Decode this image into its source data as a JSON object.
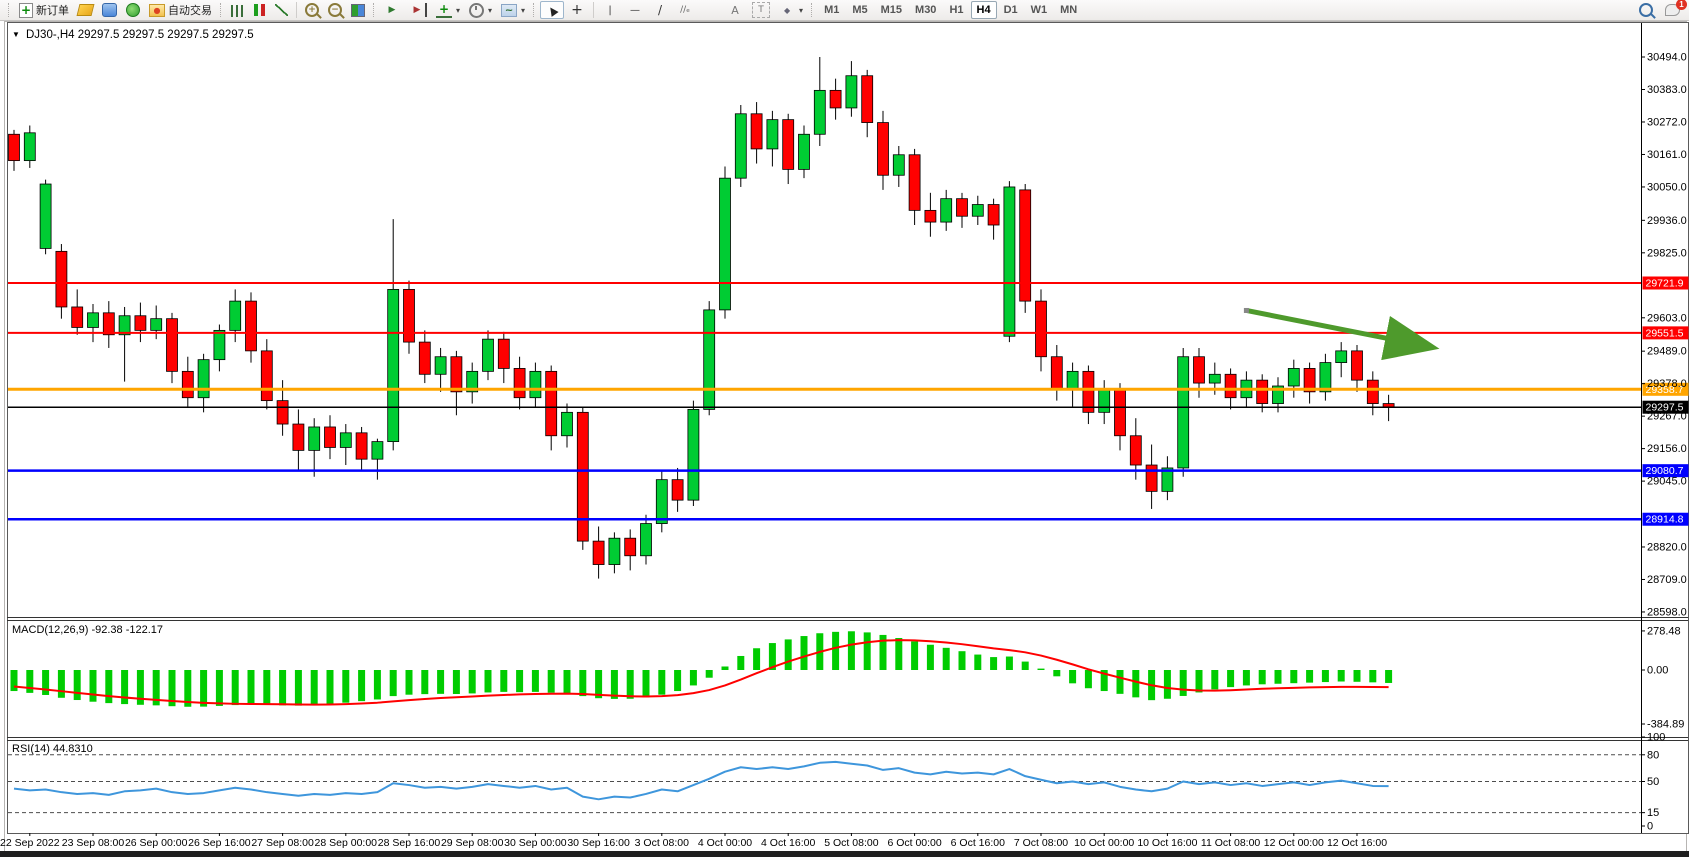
{
  "toolbar": {
    "items": [
      {
        "kind": "grip",
        "name": "toolbar-grip-1"
      },
      {
        "kind": "btn",
        "name": "new-order-button",
        "icon": "neworder",
        "iconName": "new-order-icon",
        "label": "新订单"
      },
      {
        "kind": "btn",
        "name": "highlight-button",
        "icon": "highlight",
        "iconName": "highlighter-icon"
      },
      {
        "kind": "btn",
        "name": "terminal-button",
        "icon": "terminal",
        "iconName": "terminal-window-icon"
      },
      {
        "kind": "btn",
        "name": "signals-button",
        "icon": "signal",
        "iconName": "broadcast-icon"
      },
      {
        "kind": "btn",
        "name": "auto-trading-button",
        "icon": "autotrade",
        "iconName": "auto-trading-icon",
        "label": "自动交易"
      },
      {
        "kind": "grip",
        "name": "toolbar-grip-2"
      },
      {
        "kind": "btn",
        "name": "bar-chart-button",
        "icon": "bars",
        "iconName": "bar-chart-icon"
      },
      {
        "kind": "btn",
        "name": "candlestick-chart-button",
        "icon": "candles",
        "iconName": "candlestick-icon"
      },
      {
        "kind": "btn",
        "name": "line-chart-button",
        "icon": "linechart",
        "iconName": "line-chart-icon"
      },
      {
        "kind": "sep",
        "name": "toolbar-sep-1"
      },
      {
        "kind": "btn",
        "name": "zoom-in-button",
        "icon": "zoomin",
        "iconName": "zoom-in-icon"
      },
      {
        "kind": "btn",
        "name": "zoom-out-button",
        "icon": "zoomout",
        "iconName": "zoom-out-icon"
      },
      {
        "kind": "btn",
        "name": "tile-windows-button",
        "icon": "tile",
        "iconName": "tile-windows-icon"
      },
      {
        "kind": "grip",
        "name": "toolbar-grip-3"
      },
      {
        "kind": "btn",
        "name": "auto-scroll-button",
        "icon": "autoscroll",
        "iconName": "auto-scroll-icon"
      },
      {
        "kind": "btn",
        "name": "chart-shift-button",
        "icon": "shift",
        "iconName": "chart-shift-icon"
      },
      {
        "kind": "btn",
        "name": "indicators-button",
        "icon": "indicators",
        "iconName": "indicators-icon",
        "caret": true
      },
      {
        "kind": "btn",
        "name": "periods-button",
        "icon": "clock",
        "iconName": "clock-icon",
        "caret": true
      },
      {
        "kind": "btn",
        "name": "templates-button",
        "icon": "template",
        "iconName": "template-icon",
        "caret": true
      },
      {
        "kind": "grip",
        "name": "toolbar-grip-4"
      },
      {
        "kind": "btn",
        "name": "cursor-button",
        "icon": "cursor",
        "iconName": "cursor-icon",
        "active": true
      },
      {
        "kind": "btn",
        "name": "crosshair-button",
        "icon": "crosshair",
        "iconName": "crosshair-icon"
      },
      {
        "kind": "sep",
        "name": "toolbar-sep-2"
      },
      {
        "kind": "btn",
        "name": "vertical-line-button",
        "icon": "vline",
        "iconName": "vertical-line-icon"
      },
      {
        "kind": "btn",
        "name": "horizontal-line-button",
        "icon": "hline",
        "iconName": "horizontal-line-icon"
      },
      {
        "kind": "btn",
        "name": "trendline-button",
        "icon": "trendline",
        "iconName": "trendline-icon"
      },
      {
        "kind": "btn",
        "name": "equidistant-channel-button",
        "icon": "channel",
        "iconName": "equidistant-channel-icon"
      },
      {
        "kind": "btn",
        "name": "fibonacci-button",
        "icon": "fibo",
        "iconName": "fibonacci-icon"
      },
      {
        "kind": "btn",
        "name": "text-button",
        "icon": "text",
        "iconName": "text-icon"
      },
      {
        "kind": "btn",
        "name": "text-label-button",
        "icon": "label",
        "iconName": "text-label-icon"
      },
      {
        "kind": "btn",
        "name": "arrows-button",
        "icon": "arrows",
        "iconName": "arrows-icon",
        "caret": true
      },
      {
        "kind": "grip",
        "name": "toolbar-grip-5"
      },
      {
        "kind": "tf",
        "name": "timeframe-m1",
        "label": "M1"
      },
      {
        "kind": "tf",
        "name": "timeframe-m5",
        "label": "M5"
      },
      {
        "kind": "tf",
        "name": "timeframe-m15",
        "label": "M15"
      },
      {
        "kind": "tf",
        "name": "timeframe-m30",
        "label": "M30"
      },
      {
        "kind": "tf",
        "name": "timeframe-h1",
        "label": "H1"
      },
      {
        "kind": "tf",
        "name": "timeframe-h4",
        "label": "H4",
        "active": true
      },
      {
        "kind": "tf",
        "name": "timeframe-d1",
        "label": "D1"
      },
      {
        "kind": "tf",
        "name": "timeframe-w1",
        "label": "W1"
      },
      {
        "kind": "tf",
        "name": "timeframe-mn",
        "label": "MN"
      }
    ],
    "right_items": [
      {
        "kind": "btn",
        "name": "search-button",
        "icon": "search",
        "iconName": "search-icon"
      },
      {
        "kind": "btn",
        "name": "chat-button",
        "icon": "chat",
        "iconName": "chat-bubble-icon",
        "badge": "1"
      }
    ]
  },
  "window": {
    "collapse_glyph": "▼",
    "title": "DJ30-,H4",
    "quotes": "29297.5 29297.5 29297.5 29297.5"
  },
  "colors": {
    "bull": "#00CC33",
    "bear": "#FF0000",
    "wick": "#000000",
    "macd_hist": "#00CC00",
    "macd_signal": "#FF0000",
    "rsi_line": "#3E96DC",
    "arrow": "#4E9A2C",
    "line_red": "#FF0000",
    "line_orange": "#FFA500",
    "line_blue": "#0000FF",
    "line_black": "#000000"
  },
  "chart_data": {
    "type": "candlestick",
    "symbol": "DJ30-",
    "timeframe": "H4",
    "title": "DJ30-,H4  29297.5 29297.5 29297.5 29297.5",
    "x_labels": [
      "22 Sep 2022",
      "23 Sep 08:00",
      "26 Sep 00:00",
      "26 Sep 16:00",
      "27 Sep 08:00",
      "28 Sep 00:00",
      "28 Sep 16:00",
      "29 Sep 08:00",
      "30 Sep 00:00",
      "30 Sep 16:00",
      "3 Oct 08:00",
      "4 Oct 00:00",
      "4 Oct 16:00",
      "5 Oct 08:00",
      "6 Oct 00:00",
      "6 Oct 16:00",
      "7 Oct 08:00",
      "10 Oct 00:00",
      "10 Oct 16:00",
      "11 Oct 08:00",
      "12 Oct 00:00",
      "12 Oct 16:00"
    ],
    "price_ticks": [
      30494.0,
      30383.0,
      30272.0,
      30161.0,
      30050.0,
      29936.0,
      29825.0,
      29603.0,
      29489.0,
      29378.0,
      29267.0,
      29156.0,
      29045.0,
      28820.0,
      28709.0,
      28598.0
    ],
    "ylim": [
      28560,
      30560
    ],
    "hlines": [
      {
        "price": 29721.9,
        "color": "#FF0000",
        "width": 2
      },
      {
        "price": 29551.5,
        "color": "#FF0000",
        "width": 2
      },
      {
        "price": 29358.7,
        "color": "#FFA500",
        "width": 3
      },
      {
        "price": 29297.5,
        "color": "#000000",
        "width": 1.5
      },
      {
        "price": 29080.7,
        "color": "#0000FF",
        "width": 2.5
      },
      {
        "price": 28914.8,
        "color": "#0000FF",
        "width": 2.5
      }
    ],
    "trend_arrow": {
      "from_bar": 78,
      "from_price": 29628,
      "to_bar": 89.6,
      "to_price": 29504
    },
    "ohlc": [
      [
        30230,
        30245,
        30105,
        30140
      ],
      [
        30140,
        30260,
        30115,
        30235
      ],
      [
        29840,
        30075,
        29820,
        30060
      ],
      [
        29830,
        29855,
        29600,
        29640
      ],
      [
        29640,
        29700,
        29545,
        29570
      ],
      [
        29570,
        29650,
        29520,
        29620
      ],
      [
        29620,
        29660,
        29500,
        29545
      ],
      [
        29545,
        29640,
        29385,
        29610
      ],
      [
        29610,
        29655,
        29520,
        29560
      ],
      [
        29560,
        29645,
        29530,
        29600
      ],
      [
        29600,
        29620,
        29380,
        29420
      ],
      [
        29420,
        29470,
        29300,
        29330
      ],
      [
        29330,
        29480,
        29280,
        29460
      ],
      [
        29460,
        29580,
        29420,
        29560
      ],
      [
        29560,
        29700,
        29520,
        29660
      ],
      [
        29660,
        29690,
        29450,
        29490
      ],
      [
        29490,
        29530,
        29290,
        29320
      ],
      [
        29320,
        29390,
        29200,
        29240
      ],
      [
        29240,
        29290,
        29080,
        29150
      ],
      [
        29150,
        29260,
        29060,
        29230
      ],
      [
        29230,
        29270,
        29120,
        29160
      ],
      [
        29160,
        29240,
        29100,
        29210
      ],
      [
        29210,
        29230,
        29080,
        29120
      ],
      [
        29120,
        29190,
        29050,
        29180
      ],
      [
        29180,
        29940,
        29150,
        29700
      ],
      [
        29700,
        29730,
        29480,
        29520
      ],
      [
        29520,
        29560,
        29380,
        29410
      ],
      [
        29410,
        29500,
        29350,
        29470
      ],
      [
        29470,
        29490,
        29270,
        29350
      ],
      [
        29350,
        29450,
        29310,
        29420
      ],
      [
        29420,
        29560,
        29390,
        29530
      ],
      [
        29530,
        29555,
        29380,
        29430
      ],
      [
        29430,
        29470,
        29290,
        29330
      ],
      [
        29330,
        29450,
        29300,
        29420
      ],
      [
        29420,
        29440,
        29150,
        29200
      ],
      [
        29200,
        29310,
        29160,
        29280
      ],
      [
        29280,
        29300,
        28810,
        28840
      ],
      [
        28840,
        28890,
        28712,
        28760
      ],
      [
        28760,
        28870,
        28730,
        28850
      ],
      [
        28850,
        28880,
        28740,
        28790
      ],
      [
        28790,
        28930,
        28760,
        28900
      ],
      [
        28900,
        29080,
        28870,
        29050
      ],
      [
        29050,
        29090,
        28940,
        28980
      ],
      [
        28980,
        29320,
        28960,
        29290
      ],
      [
        29290,
        29660,
        29270,
        29630
      ],
      [
        29630,
        30120,
        29600,
        30080
      ],
      [
        30080,
        30330,
        30050,
        30300
      ],
      [
        30300,
        30340,
        30130,
        30180
      ],
      [
        30180,
        30310,
        30120,
        30280
      ],
      [
        30280,
        30300,
        30060,
        30110
      ],
      [
        30110,
        30260,
        30080,
        30230
      ],
      [
        30230,
        30494,
        30190,
        30380
      ],
      [
        30380,
        30420,
        30280,
        30320
      ],
      [
        30320,
        30480,
        30290,
        30430
      ],
      [
        30430,
        30450,
        30220,
        30270
      ],
      [
        30270,
        30310,
        30040,
        30090
      ],
      [
        30090,
        30190,
        30050,
        30160
      ],
      [
        30160,
        30180,
        29920,
        29970
      ],
      [
        29970,
        30030,
        29880,
        29930
      ],
      [
        29930,
        30040,
        29900,
        30010
      ],
      [
        30010,
        30030,
        29910,
        29950
      ],
      [
        29950,
        30020,
        29920,
        29990
      ],
      [
        29990,
        30010,
        29870,
        29920
      ],
      [
        29540,
        30070,
        29520,
        30050
      ],
      [
        30040,
        30060,
        29620,
        29660
      ],
      [
        29660,
        29700,
        29420,
        29470
      ],
      [
        29470,
        29510,
        29320,
        29360
      ],
      [
        29360,
        29450,
        29300,
        29420
      ],
      [
        29420,
        29440,
        29240,
        29280
      ],
      [
        29280,
        29390,
        29240,
        29360
      ],
      [
        29360,
        29380,
        29150,
        29200
      ],
      [
        29200,
        29260,
        29050,
        29100
      ],
      [
        29100,
        29170,
        28950,
        29010
      ],
      [
        29010,
        29130,
        28980,
        29090
      ],
      [
        29090,
        29500,
        29060,
        29470
      ],
      [
        29470,
        29500,
        29330,
        29380
      ],
      [
        29380,
        29450,
        29340,
        29410
      ],
      [
        29410,
        29430,
        29290,
        29330
      ],
      [
        29330,
        29420,
        29300,
        29390
      ],
      [
        29390,
        29410,
        29280,
        29310
      ],
      [
        29310,
        29400,
        29280,
        29370
      ],
      [
        29370,
        29460,
        29330,
        29430
      ],
      [
        29430,
        29450,
        29310,
        29350
      ],
      [
        29350,
        29480,
        29320,
        29450
      ],
      [
        29450,
        29520,
        29400,
        29490
      ],
      [
        29490,
        29510,
        29350,
        29390
      ],
      [
        29390,
        29420,
        29270,
        29310
      ],
      [
        29310,
        29340,
        29250,
        29297.5
      ]
    ],
    "macd": {
      "label": "MACD(12,26,9) -92.38 -122.17",
      "params": "12,26,9",
      "value": -92.38,
      "signal_value": -122.17,
      "ticks": [
        278.48,
        0.0,
        -384.89
      ],
      "hist": [
        -150,
        -163,
        -178,
        -198,
        -214,
        -226,
        -236,
        -243,
        -248,
        -252,
        -258,
        -262,
        -261,
        -256,
        -250,
        -246,
        -248,
        -252,
        -254,
        -250,
        -243,
        -233,
        -222,
        -210,
        -186,
        -176,
        -172,
        -170,
        -171,
        -167,
        -160,
        -156,
        -158,
        -156,
        -162,
        -166,
        -186,
        -201,
        -206,
        -205,
        -196,
        -176,
        -150,
        -110,
        -55,
        25,
        100,
        155,
        192,
        218,
        242,
        262,
        272,
        276,
        268,
        250,
        228,
        204,
        180,
        158,
        134,
        110,
        92,
        96,
        60,
        10,
        -45,
        -95,
        -130,
        -150,
        -170,
        -195,
        -215,
        -205,
        -185,
        -160,
        -138,
        -122,
        -110,
        -102,
        -98,
        -94,
        -90,
        -86,
        -82,
        -84,
        -88,
        -92.38
      ],
      "signal": [
        -118,
        -128,
        -139,
        -151,
        -163,
        -175,
        -186,
        -196,
        -205,
        -213,
        -221,
        -228,
        -234,
        -238,
        -241,
        -242,
        -243,
        -244,
        -246,
        -247,
        -246,
        -243,
        -239,
        -233,
        -224,
        -215,
        -207,
        -200,
        -194,
        -189,
        -183,
        -178,
        -174,
        -171,
        -169,
        -168,
        -171,
        -177,
        -183,
        -187,
        -189,
        -186,
        -179,
        -165,
        -143,
        -110,
        -68,
        -23,
        20,
        60,
        96,
        129,
        158,
        181,
        198,
        209,
        213,
        211,
        205,
        196,
        184,
        169,
        154,
        142,
        126,
        103,
        73,
        40,
        5,
        -26,
        -55,
        -83,
        -109,
        -128,
        -140,
        -146,
        -147,
        -144,
        -139,
        -134,
        -130,
        -127,
        -124,
        -122,
        -120,
        -120,
        -121,
        -122.17
      ]
    },
    "rsi": {
      "label": "RSI(14) 44.8310",
      "period": 14,
      "value": 44.831,
      "ticks": [
        100,
        80,
        50,
        15,
        0
      ],
      "levels": [
        80,
        50,
        15
      ],
      "values": [
        42,
        40,
        41,
        38,
        36,
        37,
        35,
        39,
        40,
        42,
        38,
        36,
        37,
        40,
        43,
        41,
        38,
        36,
        34,
        36,
        35,
        37,
        36,
        38,
        48,
        46,
        43,
        44,
        42,
        44,
        47,
        45,
        43,
        45,
        41,
        43,
        33,
        30,
        33,
        32,
        36,
        41,
        39,
        46,
        53,
        61,
        66,
        64,
        66,
        64,
        67,
        71,
        72,
        70,
        68,
        63,
        65,
        60,
        58,
        61,
        59,
        60,
        58,
        64,
        56,
        52,
        48,
        50,
        47,
        49,
        44,
        41,
        39,
        42,
        50,
        47,
        49,
        46,
        48,
        45,
        47,
        49,
        46,
        49,
        51,
        48,
        45,
        44.83
      ]
    }
  }
}
